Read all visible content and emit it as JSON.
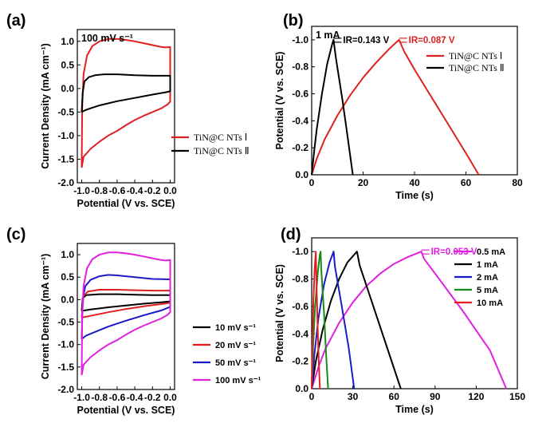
{
  "chart_data": [
    {
      "panel_label": "(a)",
      "type": "line",
      "chart_kind": "cyclic voltammetry",
      "condition": "100 mV s⁻¹",
      "xlabel": "Potential (V vs. SCE)",
      "ylabel": "Current Density (mA cm⁻¹)",
      "xlim": [
        -1.05,
        0.05
      ],
      "ylim": [
        -2.0,
        1.25
      ],
      "xticks": [
        -1.0,
        -0.8,
        -0.6,
        -0.4,
        -0.2,
        0.0
      ],
      "xtick_labels": [
        "-1.0",
        "-0.8",
        "-0.6",
        "-0.4",
        "-0.2",
        "0.0"
      ],
      "yticks": [
        -2.0,
        -1.5,
        -1.0,
        -0.5,
        0.0,
        0.5,
        1.0
      ],
      "ytick_labels": [
        "-2.0",
        "-1.5",
        "-1.0",
        "-0.5",
        "0.0",
        "0.5",
        "1.0"
      ],
      "legend_position": "bottom-right",
      "series": [
        {
          "name": "TiN@C NTs Ⅰ",
          "color": "#e02020",
          "points": [
            [
              -1.0,
              -1.68
            ],
            [
              -0.98,
              -1.45
            ],
            [
              -0.9,
              -1.28
            ],
            [
              -0.8,
              -1.13
            ],
            [
              -0.7,
              -1.0
            ],
            [
              -0.6,
              -0.9
            ],
            [
              -0.5,
              -0.78
            ],
            [
              -0.4,
              -0.67
            ],
            [
              -0.3,
              -0.58
            ],
            [
              -0.2,
              -0.5
            ],
            [
              -0.1,
              -0.42
            ],
            [
              -0.03,
              -0.34
            ],
            [
              0.0,
              -0.28
            ],
            [
              0.0,
              0.0
            ],
            [
              0.0,
              0.88
            ],
            [
              -0.05,
              0.87
            ],
            [
              -0.1,
              0.88
            ],
            [
              -0.2,
              0.92
            ],
            [
              -0.3,
              0.96
            ],
            [
              -0.4,
              1.0
            ],
            [
              -0.5,
              1.03
            ],
            [
              -0.6,
              1.05
            ],
            [
              -0.7,
              1.05
            ],
            [
              -0.8,
              1.0
            ],
            [
              -0.88,
              0.9
            ],
            [
              -0.94,
              0.7
            ],
            [
              -0.98,
              0.3
            ],
            [
              -0.995,
              -0.4
            ],
            [
              -1.0,
              -1.68
            ]
          ]
        },
        {
          "name": "TiN@C NTs Ⅱ",
          "color": "#000000",
          "points": [
            [
              -1.0,
              -0.5
            ],
            [
              -0.96,
              -0.46
            ],
            [
              -0.9,
              -0.42
            ],
            [
              -0.8,
              -0.36
            ],
            [
              -0.6,
              -0.27
            ],
            [
              -0.4,
              -0.2
            ],
            [
              -0.2,
              -0.13
            ],
            [
              -0.05,
              -0.08
            ],
            [
              0.0,
              -0.06
            ],
            [
              0.0,
              0.27
            ],
            [
              -0.2,
              0.27
            ],
            [
              -0.4,
              0.28
            ],
            [
              -0.6,
              0.3
            ],
            [
              -0.75,
              0.3
            ],
            [
              -0.85,
              0.28
            ],
            [
              -0.92,
              0.24
            ],
            [
              -0.97,
              0.15
            ],
            [
              -0.99,
              -0.1
            ],
            [
              -1.0,
              -0.5
            ]
          ]
        }
      ]
    },
    {
      "panel_label": "(b)",
      "type": "line",
      "chart_kind": "galvanostatic charge-discharge",
      "condition": "1 mA",
      "xlabel": "Time (s)",
      "ylabel": "Potential (V vs. SCE)",
      "xlim": [
        0,
        80
      ],
      "ylim_note": "inverted axis, 0.0 at bottom, -1.0 near top",
      "ylim": [
        -1.1,
        0.0
      ],
      "xticks": [
        0,
        20,
        40,
        60,
        80
      ],
      "xtick_labels": [
        "0",
        "20",
        "40",
        "60",
        "80"
      ],
      "yticks": [
        0.0,
        -0.2,
        -0.4,
        -0.6,
        -0.8,
        -1.0
      ],
      "ytick_labels": [
        "0.0",
        "-0.2",
        "-0.4",
        "-0.6",
        "-0.8",
        "-1.0"
      ],
      "legend_position": "top-right",
      "annotations": [
        {
          "text": "IR=0.143 V",
          "color": "#000000"
        },
        {
          "text": "IR=0.087 V",
          "color": "#e02020"
        }
      ],
      "series": [
        {
          "name": "TiN@C NTs Ⅰ",
          "color": "#e02020",
          "points": [
            [
              0,
              0.0
            ],
            [
              2,
              -0.12
            ],
            [
              5,
              -0.26
            ],
            [
              10,
              -0.44
            ],
            [
              15,
              -0.59
            ],
            [
              20,
              -0.72
            ],
            [
              25,
              -0.83
            ],
            [
              30,
              -0.93
            ],
            [
              34,
              -1.0
            ],
            [
              36,
              -0.913
            ],
            [
              40,
              -0.78
            ],
            [
              50,
              -0.47
            ],
            [
              60,
              -0.16
            ],
            [
              65,
              0.0
            ]
          ]
        },
        {
          "name": "TiN@C NTs Ⅱ",
          "color": "#000000",
          "points": [
            [
              0,
              0.0
            ],
            [
              1,
              -0.18
            ],
            [
              2,
              -0.34
            ],
            [
              4,
              -0.6
            ],
            [
              6,
              -0.82
            ],
            [
              8,
              -0.97
            ],
            [
              8.5,
              -1.0
            ],
            [
              9.5,
              -0.857
            ],
            [
              12,
              -0.55
            ],
            [
              14,
              -0.28
            ],
            [
              16,
              0.0
            ]
          ]
        }
      ]
    },
    {
      "panel_label": "(c)",
      "type": "line",
      "chart_kind": "cyclic voltammetry",
      "xlabel": "Potential (V vs. SCE)",
      "ylabel": "Current Density (mA cm⁻¹)",
      "xlim": [
        -1.05,
        0.05
      ],
      "ylim": [
        -2.0,
        1.25
      ],
      "xticks": [
        -1.0,
        -0.8,
        -0.6,
        -0.4,
        -0.2,
        0.0
      ],
      "xtick_labels": [
        "-1.0",
        "-0.8",
        "-0.6",
        "-0.4",
        "-0.2",
        "0.0"
      ],
      "yticks": [
        -2.0,
        -1.5,
        -1.0,
        -0.5,
        0.0,
        0.5,
        1.0
      ],
      "ytick_labels": [
        "-2.0",
        "-1.5",
        "-1.0",
        "-0.5",
        "0.0",
        "0.5",
        "1.0"
      ],
      "legend_position": "bottom-right",
      "series": [
        {
          "name": "10 mV s⁻¹",
          "color": "#000000",
          "points": [
            [
              -1.0,
              -0.25
            ],
            [
              -0.9,
              -0.22
            ],
            [
              -0.7,
              -0.17
            ],
            [
              -0.5,
              -0.13
            ],
            [
              -0.3,
              -0.09
            ],
            [
              -0.1,
              -0.06
            ],
            [
              0.0,
              -0.04
            ],
            [
              0.0,
              0.1
            ],
            [
              -0.2,
              0.1
            ],
            [
              -0.4,
              0.11
            ],
            [
              -0.6,
              0.12
            ],
            [
              -0.8,
              0.12
            ],
            [
              -0.95,
              0.1
            ],
            [
              -0.99,
              0.03
            ],
            [
              -1.0,
              -0.25
            ]
          ]
        },
        {
          "name": "20 mV s⁻¹",
          "color": "#e02020",
          "points": [
            [
              -1.0,
              -0.4
            ],
            [
              -0.9,
              -0.36
            ],
            [
              -0.7,
              -0.28
            ],
            [
              -0.5,
              -0.21
            ],
            [
              -0.3,
              -0.15
            ],
            [
              -0.1,
              -0.1
            ],
            [
              0.0,
              -0.07
            ],
            [
              0.0,
              0.2
            ],
            [
              -0.2,
              0.2
            ],
            [
              -0.4,
              0.21
            ],
            [
              -0.6,
              0.22
            ],
            [
              -0.8,
              0.22
            ],
            [
              -0.93,
              0.18
            ],
            [
              -0.98,
              0.08
            ],
            [
              -1.0,
              -0.4
            ]
          ]
        },
        {
          "name": "50 mV s⁻¹",
          "color": "#1a1ac8",
          "points": [
            [
              -1.0,
              -0.88
            ],
            [
              -0.95,
              -0.8
            ],
            [
              -0.85,
              -0.72
            ],
            [
              -0.7,
              -0.6
            ],
            [
              -0.5,
              -0.47
            ],
            [
              -0.3,
              -0.35
            ],
            [
              -0.1,
              -0.24
            ],
            [
              0.0,
              -0.16
            ],
            [
              0.0,
              0.45
            ],
            [
              -0.2,
              0.46
            ],
            [
              -0.4,
              0.5
            ],
            [
              -0.6,
              0.54
            ],
            [
              -0.7,
              0.55
            ],
            [
              -0.8,
              0.52
            ],
            [
              -0.9,
              0.44
            ],
            [
              -0.96,
              0.3
            ],
            [
              -0.99,
              0.0
            ],
            [
              -1.0,
              -0.88
            ]
          ]
        },
        {
          "name": "100 mV s⁻¹",
          "color": "#e020e0",
          "points": [
            [
              -1.0,
              -1.68
            ],
            [
              -0.98,
              -1.45
            ],
            [
              -0.9,
              -1.28
            ],
            [
              -0.8,
              -1.13
            ],
            [
              -0.7,
              -1.0
            ],
            [
              -0.6,
              -0.9
            ],
            [
              -0.5,
              -0.78
            ],
            [
              -0.4,
              -0.67
            ],
            [
              -0.3,
              -0.58
            ],
            [
              -0.2,
              -0.5
            ],
            [
              -0.1,
              -0.42
            ],
            [
              -0.03,
              -0.34
            ],
            [
              0.0,
              -0.28
            ],
            [
              0.0,
              0.0
            ],
            [
              0.0,
              0.88
            ],
            [
              -0.05,
              0.87
            ],
            [
              -0.1,
              0.88
            ],
            [
              -0.2,
              0.92
            ],
            [
              -0.3,
              0.96
            ],
            [
              -0.4,
              1.0
            ],
            [
              -0.5,
              1.03
            ],
            [
              -0.6,
              1.05
            ],
            [
              -0.7,
              1.05
            ],
            [
              -0.8,
              1.0
            ],
            [
              -0.88,
              0.9
            ],
            [
              -0.94,
              0.7
            ],
            [
              -0.98,
              0.3
            ],
            [
              -0.995,
              -0.4
            ],
            [
              -1.0,
              -1.68
            ]
          ]
        }
      ]
    },
    {
      "panel_label": "(d)",
      "type": "line",
      "chart_kind": "galvanostatic charge-discharge",
      "xlabel": "Time (s)",
      "ylabel": "Potential (V vs. SCE)",
      "xlim": [
        0,
        150
      ],
      "ylim_note": "inverted axis, 0.0 at bottom, -1.0 near top",
      "ylim": [
        -1.1,
        0.0
      ],
      "xticks": [
        0,
        30,
        60,
        90,
        120,
        150
      ],
      "xtick_labels": [
        "0",
        "30",
        "60",
        "90",
        "120",
        "150"
      ],
      "yticks": [
        0.0,
        -0.2,
        -0.4,
        -0.6,
        -0.8,
        -1.0
      ],
      "ytick_labels": [
        "0.0",
        "-0.2",
        "-0.4",
        "-0.6",
        "-0.8",
        "-1.0"
      ],
      "legend_position": "top-right",
      "annotations": [
        {
          "text": "IR=0.053 V",
          "color": "#e020e0"
        }
      ],
      "series": [
        {
          "name": "0.5 mA",
          "color": "#e020e0",
          "points": [
            [
              0,
              0.0
            ],
            [
              5,
              -0.16
            ],
            [
              10,
              -0.29
            ],
            [
              20,
              -0.48
            ],
            [
              30,
              -0.63
            ],
            [
              40,
              -0.75
            ],
            [
              50,
              -0.84
            ],
            [
              60,
              -0.91
            ],
            [
              70,
              -0.96
            ],
            [
              80,
              -1.0
            ],
            [
              82,
              -0.947
            ],
            [
              90,
              -0.84
            ],
            [
              110,
              -0.57
            ],
            [
              130,
              -0.28
            ],
            [
              142,
              0.0
            ]
          ]
        },
        {
          "name": "1 mA",
          "color": "#000000",
          "points": [
            [
              0,
              0.0
            ],
            [
              3,
              -0.2
            ],
            [
              8,
              -0.43
            ],
            [
              14,
              -0.64
            ],
            [
              20,
              -0.8
            ],
            [
              26,
              -0.92
            ],
            [
              33,
              -1.0
            ],
            [
              35,
              -0.9
            ],
            [
              45,
              -0.6
            ],
            [
              55,
              -0.3
            ],
            [
              65,
              0.0
            ]
          ]
        },
        {
          "name": "2 mA",
          "color": "#1a1ac8",
          "points": [
            [
              0,
              0.0
            ],
            [
              2,
              -0.25
            ],
            [
              5,
              -0.52
            ],
            [
              9,
              -0.76
            ],
            [
              13,
              -0.92
            ],
            [
              16,
              -1.0
            ],
            [
              17,
              -0.89
            ],
            [
              22,
              -0.6
            ],
            [
              27,
              -0.3
            ],
            [
              31,
              0.0
            ]
          ]
        },
        {
          "name": "5 mA",
          "color": "#1a8a1a",
          "points": [
            [
              0,
              0.0
            ],
            [
              1,
              -0.3
            ],
            [
              2.5,
              -0.6
            ],
            [
              4.5,
              -0.85
            ],
            [
              6,
              -0.98
            ],
            [
              6.5,
              -1.0
            ],
            [
              7,
              -0.87
            ],
            [
              9,
              -0.55
            ],
            [
              10.5,
              -0.25
            ],
            [
              12,
              0.0
            ]
          ]
        },
        {
          "name": "10 mA",
          "color": "#e02020",
          "points": [
            [
              0,
              0.0
            ],
            [
              0.6,
              -0.35
            ],
            [
              1.3,
              -0.65
            ],
            [
              2.2,
              -0.88
            ],
            [
              3,
              -1.0
            ],
            [
              3.3,
              -0.86
            ],
            [
              4.2,
              -0.5
            ],
            [
              5.2,
              -0.2
            ],
            [
              6,
              0.0
            ]
          ]
        }
      ]
    }
  ]
}
